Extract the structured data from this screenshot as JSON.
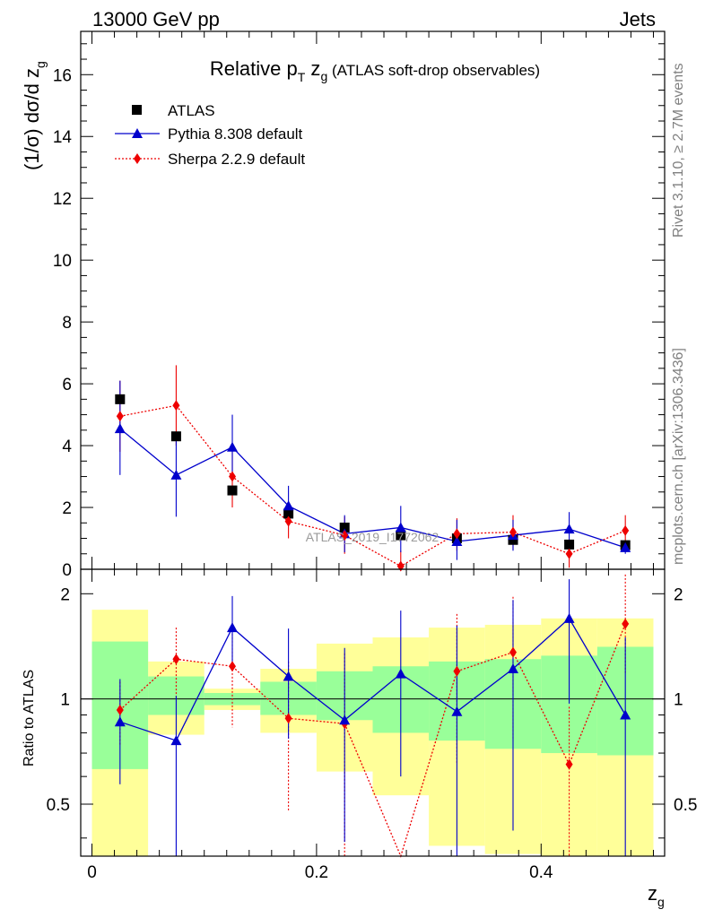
{
  "header": {
    "energy_label": "13000 GeV pp",
    "category_label": "Jets"
  },
  "side_labels": {
    "rivet": "Rivet 3.1.10, ≥ 2.7M events",
    "mcplots": "mcplots.cern.ch [arXiv:1306.3436]"
  },
  "colors": {
    "data": "#000000",
    "pythia": "#0000cc",
    "sherpa": "#ee0000",
    "band_inner": "#99ff99",
    "band_outer": "#ffff99"
  },
  "chart_data": {
    "type": "scatter",
    "title_main": "Relative p",
    "title_sub_T": "T",
    "title_z": " z",
    "title_sub_g": "g",
    "title_rest": " (ATLAS soft-drop observables)",
    "watermark": "ATLAS_2019_I1772062",
    "xlabel": "z",
    "xlabel_sub": "g",
    "ylabel_main": "(1/σ) dσ/d z",
    "ylabel_sub": "g",
    "ratio_ylabel": "Ratio to ATLAS",
    "xlim": [
      -0.01,
      0.51
    ],
    "ylim_main": [
      0,
      17.4
    ],
    "ylim_ratio": [
      0.355,
      2.35
    ],
    "x_ticks": [
      0,
      0.2,
      0.4
    ],
    "x_tick_labels": [
      "0",
      "0.2",
      "0.4"
    ],
    "y_ticks_main": [
      0,
      2,
      4,
      6,
      8,
      10,
      12,
      14,
      16
    ],
    "y_tick_labels_main": [
      "0",
      "2",
      "4",
      "6",
      "8",
      "10",
      "12",
      "14",
      "16"
    ],
    "y_ticks_ratio": [
      0.5,
      1,
      2
    ],
    "y_tick_labels_ratio": [
      "0.5",
      "1",
      "2"
    ],
    "bin_edges": [
      0.0,
      0.05,
      0.1,
      0.15,
      0.2,
      0.25,
      0.3,
      0.35,
      0.4,
      0.45,
      0.5
    ],
    "x": [
      0.025,
      0.075,
      0.125,
      0.175,
      0.225,
      0.275,
      0.325,
      0.375,
      0.425,
      0.475
    ],
    "legend": [
      {
        "name": "ATLAS",
        "key": "atlas"
      },
      {
        "name": "Pythia 8.308 default",
        "key": "pythia"
      },
      {
        "name": "Sherpa 2.2.9 default",
        "key": "sherpa"
      }
    ],
    "series": [
      {
        "name": "ATLAS",
        "key": "atlas",
        "values": [
          5.5,
          4.3,
          2.55,
          1.8,
          1.35,
          1.1,
          1.0,
          0.95,
          0.8,
          0.78
        ]
      },
      {
        "name": "Pythia 8.308 default",
        "key": "pythia",
        "values": [
          4.55,
          3.05,
          3.95,
          2.05,
          1.15,
          1.35,
          0.9,
          1.1,
          1.3,
          0.7
        ],
        "err_lo": [
          1.5,
          1.35,
          1.05,
          0.65,
          0.6,
          0.8,
          0.6,
          0.5,
          0.55,
          0.2
        ],
        "err_hi": [
          1.55,
          1.3,
          1.05,
          0.65,
          0.6,
          0.7,
          0.7,
          0.5,
          0.55,
          0.2
        ]
      },
      {
        "name": "Sherpa 2.2.9 default",
        "key": "sherpa",
        "values": [
          4.95,
          5.3,
          3.0,
          1.55,
          1.1,
          0.1,
          1.15,
          1.2,
          0.5,
          1.25
        ],
        "err_lo": [
          1.15,
          1.3,
          1.0,
          0.55,
          0.6,
          0.1,
          0.55,
          0.55,
          0.45,
          0.5
        ],
        "err_hi": [
          1.15,
          1.3,
          1.0,
          0.55,
          0.6,
          0.5,
          0.5,
          0.55,
          0.45,
          0.5
        ]
      }
    ],
    "ratio": {
      "pythia": {
        "values": [
          0.86,
          0.76,
          1.6,
          1.16,
          0.87,
          1.18,
          0.92,
          1.22,
          1.7,
          0.9
        ],
        "err_lo": [
          0.29,
          0.42,
          0.36,
          0.39,
          0.48,
          0.58,
          0.6,
          0.8,
          0.73,
          0.58
        ],
        "err_hi": [
          0.28,
          0.26,
          0.37,
          0.43,
          0.53,
          0.61,
          0.7,
          0.7,
          0.5,
          0.6
        ]
      },
      "sherpa": {
        "values": [
          0.93,
          1.3,
          1.24,
          0.88,
          0.85,
          0.1,
          1.2,
          1.36,
          0.65,
          1.64
        ],
        "err_lo": [
          0.19,
          0.3,
          0.41,
          0.4,
          0.5,
          0.1,
          0.55,
          0.6,
          0.3,
          0.45
        ],
        "err_hi": [
          0.19,
          0.3,
          0.41,
          0.4,
          0.5,
          0.1,
          0.55,
          0.6,
          0.3,
          0.63
        ]
      },
      "band_inner": [
        [
          0.63,
          1.46
        ],
        [
          0.9,
          1.16
        ],
        [
          0.96,
          1.04
        ],
        [
          0.9,
          1.12
        ],
        [
          0.87,
          1.2
        ],
        [
          0.8,
          1.24
        ],
        [
          0.76,
          1.28
        ],
        [
          0.72,
          1.3
        ],
        [
          0.7,
          1.33
        ],
        [
          0.69,
          1.41
        ]
      ],
      "band_outer": [
        [
          0.3,
          1.8
        ],
        [
          0.79,
          1.28
        ],
        [
          0.93,
          1.07
        ],
        [
          0.8,
          1.22
        ],
        [
          0.62,
          1.44
        ],
        [
          0.53,
          1.5
        ],
        [
          0.38,
          1.6
        ],
        [
          0.36,
          1.63
        ],
        [
          0.33,
          1.7
        ],
        [
          0.3,
          1.7
        ]
      ]
    }
  }
}
